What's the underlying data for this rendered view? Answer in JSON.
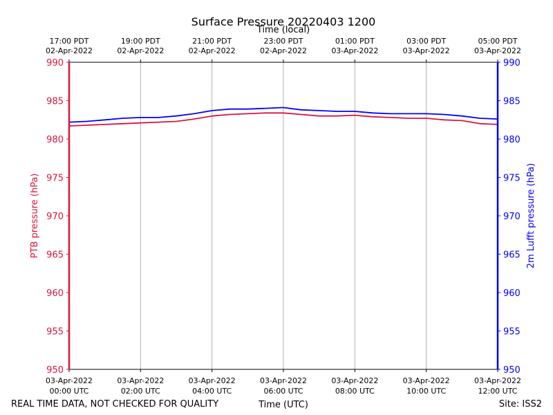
{
  "chart_data": {
    "type": "line",
    "title": "Surface Pressure 20220403 1200",
    "top_xlabel": "Time (local)",
    "xlabel": "Time (UTC)",
    "ylabel_left": "PTB pressure (hPa)",
    "ylabel_right": "2m Lufft pressure (hPa)",
    "ylim": [
      950,
      990
    ],
    "y_ticks": [
      950,
      955,
      960,
      965,
      970,
      975,
      980,
      985,
      990
    ],
    "xlim_hours": [
      0,
      12
    ],
    "grid": "vertical",
    "x_ticks_bottom": [
      {
        "hour": 0,
        "line1": "03-Apr-2022",
        "line2": "00:00 UTC"
      },
      {
        "hour": 2,
        "line1": "03-Apr-2022",
        "line2": "02:00 UTC"
      },
      {
        "hour": 4,
        "line1": "03-Apr-2022",
        "line2": "04:00 UTC"
      },
      {
        "hour": 6,
        "line1": "03-Apr-2022",
        "line2": "06:00 UTC"
      },
      {
        "hour": 8,
        "line1": "03-Apr-2022",
        "line2": "08:00 UTC"
      },
      {
        "hour": 10,
        "line1": "03-Apr-2022",
        "line2": "10:00 UTC"
      },
      {
        "hour": 12,
        "line1": "03-Apr-2022",
        "line2": "12:00 UTC"
      }
    ],
    "x_ticks_top": [
      {
        "hour": 0,
        "line1": "17:00 PDT",
        "line2": "02-Apr-2022"
      },
      {
        "hour": 2,
        "line1": "19:00 PDT",
        "line2": "02-Apr-2022"
      },
      {
        "hour": 4,
        "line1": "21:00 PDT",
        "line2": "02-Apr-2022"
      },
      {
        "hour": 6,
        "line1": "23:00 PDT",
        "line2": "02-Apr-2022"
      },
      {
        "hour": 8,
        "line1": "01:00 PDT",
        "line2": "03-Apr-2022"
      },
      {
        "hour": 10,
        "line1": "03:00 PDT",
        "line2": "03-Apr-2022"
      },
      {
        "hour": 12,
        "line1": "05:00 PDT",
        "line2": "03-Apr-2022"
      }
    ],
    "series": [
      {
        "name": "PTB pressure (hPa)",
        "color": "#dc143c",
        "axis": "left",
        "x": [
          0,
          0.5,
          1,
          1.5,
          2,
          2.5,
          3,
          3.5,
          4,
          4.5,
          5,
          5.5,
          6,
          6.5,
          7,
          7.5,
          8,
          8.5,
          9,
          9.5,
          10,
          10.5,
          11,
          11.5,
          12
        ],
        "y": [
          981.7,
          981.8,
          981.9,
          982.0,
          982.1,
          982.2,
          982.3,
          982.6,
          983.0,
          983.2,
          983.3,
          983.4,
          983.4,
          983.2,
          983.0,
          983.0,
          983.1,
          982.9,
          982.8,
          982.7,
          982.7,
          982.5,
          982.4,
          982.0,
          981.9
        ]
      },
      {
        "name": "2m Lufft pressure (hPa)",
        "color": "#0000ff",
        "axis": "right",
        "x": [
          0,
          0.5,
          1,
          1.5,
          2,
          2.5,
          3,
          3.5,
          4,
          4.5,
          5,
          5.5,
          6,
          6.5,
          7,
          7.5,
          8,
          8.5,
          9,
          9.5,
          10,
          10.5,
          11,
          11.5,
          12
        ],
        "y": [
          982.2,
          982.3,
          982.5,
          982.7,
          982.8,
          982.8,
          983.0,
          983.3,
          983.7,
          983.9,
          983.9,
          984.0,
          984.1,
          983.8,
          983.7,
          983.6,
          983.6,
          983.4,
          983.3,
          983.3,
          983.3,
          983.2,
          983.0,
          982.7,
          982.6
        ]
      }
    ],
    "footer_left": "REAL TIME DATA, NOT CHECKED FOR QUALITY",
    "footer_right": "Site: ISS2"
  }
}
